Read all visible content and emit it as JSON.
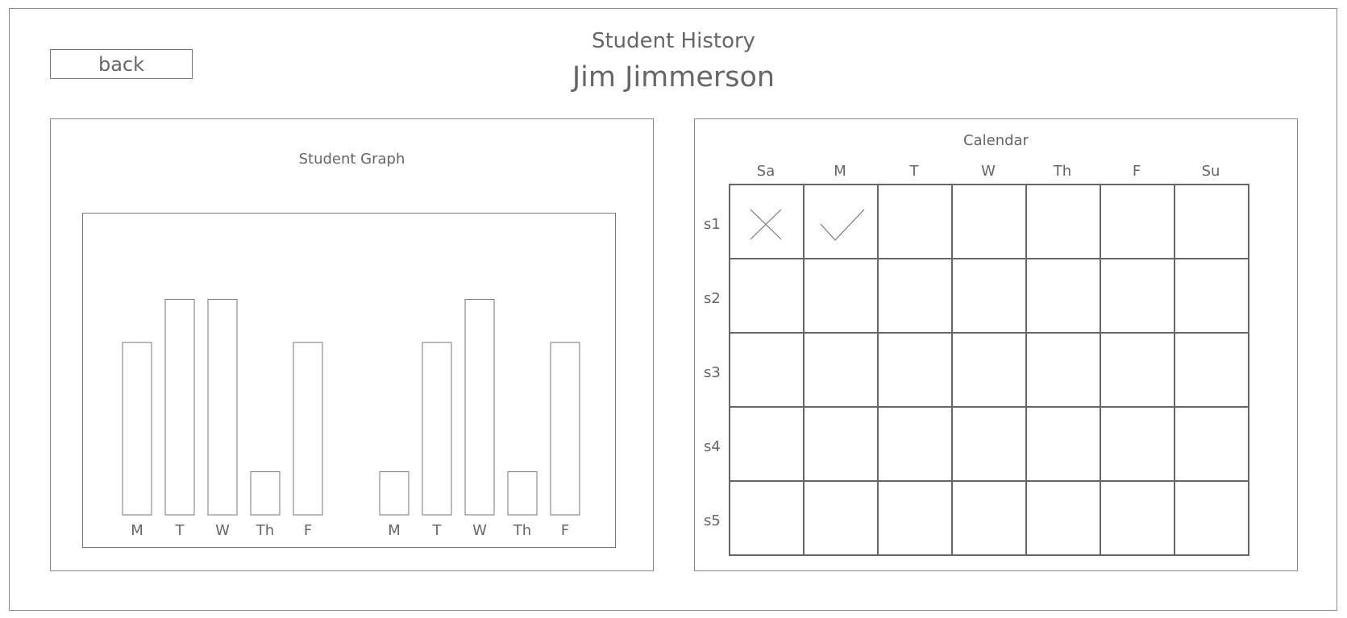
{
  "header": {
    "back_label": "back",
    "subtitle": "Student History",
    "student_name": "Jim Jimmerson"
  },
  "graph": {
    "title": "Student Graph"
  },
  "chart_data": {
    "type": "bar",
    "title": "Student Graph",
    "xlabel": "",
    "ylabel": "",
    "categories": [
      "M",
      "T",
      "W",
      "Th",
      "F",
      "M",
      "T",
      "W",
      "Th",
      "F"
    ],
    "values": [
      4,
      5,
      5,
      1,
      4,
      1,
      4,
      5,
      1,
      4
    ],
    "groups": [
      {
        "categories": [
          "M",
          "T",
          "W",
          "Th",
          "F"
        ],
        "values": [
          4,
          5,
          5,
          1,
          4
        ]
      },
      {
        "categories": [
          "M",
          "T",
          "W",
          "Th",
          "F"
        ],
        "values": [
          1,
          4,
          5,
          1,
          4
        ]
      }
    ],
    "ylim": [
      0,
      5
    ],
    "grid": false
  },
  "calendar": {
    "title": "Calendar",
    "days": [
      "Sa",
      "M",
      "T",
      "W",
      "Th",
      "F",
      "Su"
    ],
    "sessions": [
      "s1",
      "s2",
      "s3",
      "s4",
      "s5"
    ],
    "marks": [
      {
        "session": "s1",
        "day": "Sa",
        "mark": "x-icon"
      },
      {
        "session": "s1",
        "day": "M",
        "mark": "check-icon"
      }
    ]
  }
}
